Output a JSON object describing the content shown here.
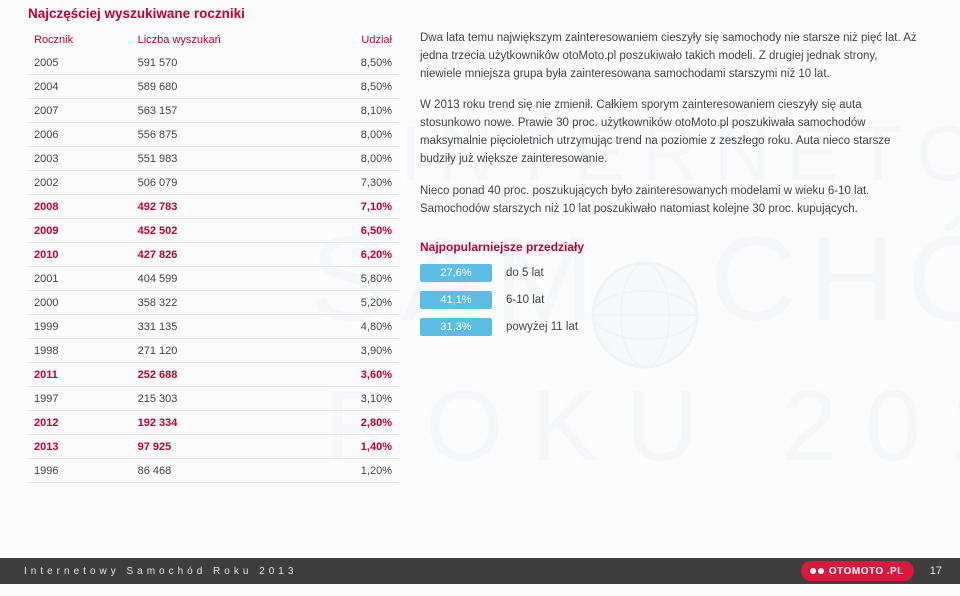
{
  "title": "Najczęściej wyszukiwane roczniki",
  "table": {
    "headers": [
      "Rocznik",
      "Liczba wyszukań",
      "Udział"
    ],
    "rows": [
      {
        "year": "2005",
        "count": "591 570",
        "share": "8,50%",
        "hl": false
      },
      {
        "year": "2004",
        "count": "589 680",
        "share": "8,50%",
        "hl": false
      },
      {
        "year": "2007",
        "count": "563 157",
        "share": "8,10%",
        "hl": false
      },
      {
        "year": "2006",
        "count": "556 875",
        "share": "8,00%",
        "hl": false
      },
      {
        "year": "2003",
        "count": "551 983",
        "share": "8,00%",
        "hl": false
      },
      {
        "year": "2002",
        "count": "506 079",
        "share": "7,30%",
        "hl": false
      },
      {
        "year": "2008",
        "count": "492 783",
        "share": "7,10%",
        "hl": true
      },
      {
        "year": "2009",
        "count": "452 502",
        "share": "6,50%",
        "hl": true
      },
      {
        "year": "2010",
        "count": "427 826",
        "share": "6,20%",
        "hl": true
      },
      {
        "year": "2001",
        "count": "404 599",
        "share": "5,80%",
        "hl": false
      },
      {
        "year": "2000",
        "count": "358 322",
        "share": "5,20%",
        "hl": false
      },
      {
        "year": "1999",
        "count": "331 135",
        "share": "4,80%",
        "hl": false
      },
      {
        "year": "1998",
        "count": "271 120",
        "share": "3,90%",
        "hl": false
      },
      {
        "year": "2011",
        "count": "252 688",
        "share": "3,60%",
        "hl": true
      },
      {
        "year": "1997",
        "count": "215 303",
        "share": "3,10%",
        "hl": false
      },
      {
        "year": "2012",
        "count": "192 334",
        "share": "2,80%",
        "hl": true
      },
      {
        "year": "2013",
        "count": "97 925",
        "share": "1,40%",
        "hl": true
      },
      {
        "year": "1996",
        "count": "86 468",
        "share": "1,20%",
        "hl": false
      }
    ]
  },
  "paragraphs": [
    "Dwa lata temu największym zainteresowaniem cieszyły się samochody nie starsze niż pięć lat. Aż jedna trzecia użytkowników otoMoto.pl poszukiwało takich modeli. Z drugiej jednak strony, niewiele mniejsza grupa była zainteresowana samochodami starszymi niż 10 lat.",
    "W 2013 roku trend się nie zmienił. Całkiem sporym zainteresowaniem cieszyły się auta stosunkowo nowe. Prawie 30 proc. użytkowników otoMoto.pl poszukiwała samochodów maksymalnie pięcioletnich utrzymując trend na poziomie z zeszłego roku. Auta nieco starsze budziły już większe zainteresowanie.",
    "Nieco ponad 40 proc. poszukujących było zainteresowanych modelami w wieku 6-10 lat. Samochodów starszych niż 10 lat poszukiwało natomiast kolejne 30 proc. kupujących."
  ],
  "popular": {
    "title": "Najpopularniejsze przedziały",
    "rows": [
      {
        "pct": "27,6%",
        "label": "do 5 lat"
      },
      {
        "pct": "41,1%",
        "label": "6-10 lat"
      },
      {
        "pct": "31,3%",
        "label": "powyżej 11 lat"
      }
    ]
  },
  "watermark": {
    "line1": "INTERNETOWY",
    "line2_prefix": "SAM",
    "line2_suffix": "CHÓD",
    "line3": "ROKU 2013",
    "colors": {
      "text": "#dfe8ef",
      "globe_fill": "#e9edf1",
      "globe_stroke": "#cfd7df"
    }
  },
  "footer": {
    "left": "Internetowy Samochód Roku 2013",
    "brand": "OTOMOTO",
    "tld": ".PL",
    "page": "17"
  },
  "colors": {
    "primary": "#c2002f",
    "body_text": "#444444",
    "row_border": "#e6e6e6",
    "badge_bg": "#5bbde4",
    "footer_bg": "#3e3e3e",
    "otomoto_bg": "#d71a3b"
  }
}
